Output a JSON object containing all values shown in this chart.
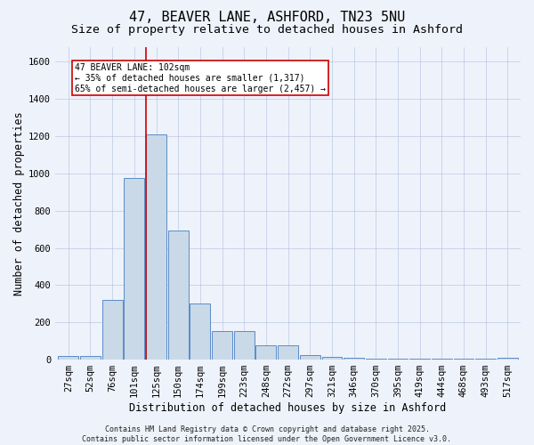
{
  "title": "47, BEAVER LANE, ASHFORD, TN23 5NU",
  "subtitle": "Size of property relative to detached houses in Ashford",
  "xlabel": "Distribution of detached houses by size in Ashford",
  "ylabel": "Number of detached properties",
  "categories": [
    "27sqm",
    "52sqm",
    "76sqm",
    "101sqm",
    "125sqm",
    "150sqm",
    "174sqm",
    "199sqm",
    "223sqm",
    "248sqm",
    "272sqm",
    "297sqm",
    "321sqm",
    "346sqm",
    "370sqm",
    "395sqm",
    "419sqm",
    "444sqm",
    "468sqm",
    "493sqm",
    "517sqm"
  ],
  "values": [
    20,
    20,
    320,
    975,
    1210,
    695,
    300,
    155,
    155,
    75,
    75,
    25,
    15,
    10,
    5,
    5,
    5,
    5,
    5,
    5,
    10
  ],
  "bar_color": "#c9d9e8",
  "bar_edge_color": "#5b8cc8",
  "red_line_x": 3.52,
  "red_line_color": "#cc0000",
  "annotation_text": "47 BEAVER LANE: 102sqm\n← 35% of detached houses are smaller (1,317)\n65% of semi-detached houses are larger (2,457) →",
  "annotation_box_color": "#ffffff",
  "annotation_box_edge_color": "#cc0000",
  "ylim": [
    0,
    1680
  ],
  "yticks": [
    0,
    200,
    400,
    600,
    800,
    1000,
    1200,
    1400,
    1600
  ],
  "background_color": "#eef2fb",
  "footer_text": "Contains HM Land Registry data © Crown copyright and database right 2025.\nContains public sector information licensed under the Open Government Licence v3.0.",
  "title_fontsize": 11,
  "subtitle_fontsize": 9.5,
  "ylabel_fontsize": 8.5,
  "xlabel_fontsize": 8.5,
  "tick_fontsize": 7.5,
  "footer_fontsize": 6,
  "annotation_fontsize": 7
}
